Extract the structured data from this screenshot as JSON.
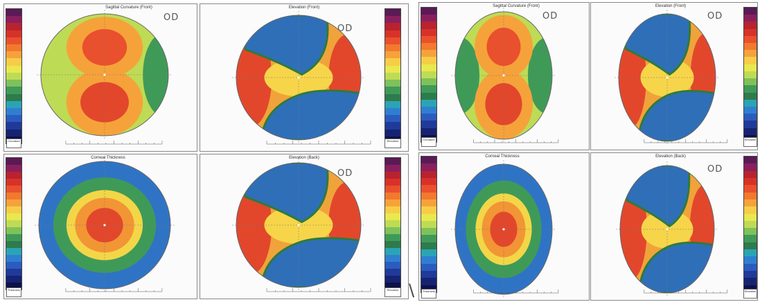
{
  "od_label": "OD",
  "stray_mark": "\\",
  "panels": {
    "sagittal": "Sagittal Curvature (Front)",
    "elev_front": "Elevation (Front)",
    "pachy": "Corneal Thickness",
    "elev_back": "Elevation (Back)"
  },
  "colorbar_boxes": {
    "curvature": "Curvature",
    "thickness": "Thickness",
    "elevation": "Elevation"
  },
  "color_scale": [
    "#5a1a56",
    "#8a1f5e",
    "#b9222f",
    "#d83228",
    "#e9502d",
    "#f2792e",
    "#f6a23a",
    "#f7cd47",
    "#e9e84e",
    "#bedb55",
    "#7fc15a",
    "#3f9a58",
    "#2e7b4c",
    "#2aa4b5",
    "#2f7fd0",
    "#2b5bbe",
    "#203a99",
    "#162372",
    "#0d124a"
  ]
}
